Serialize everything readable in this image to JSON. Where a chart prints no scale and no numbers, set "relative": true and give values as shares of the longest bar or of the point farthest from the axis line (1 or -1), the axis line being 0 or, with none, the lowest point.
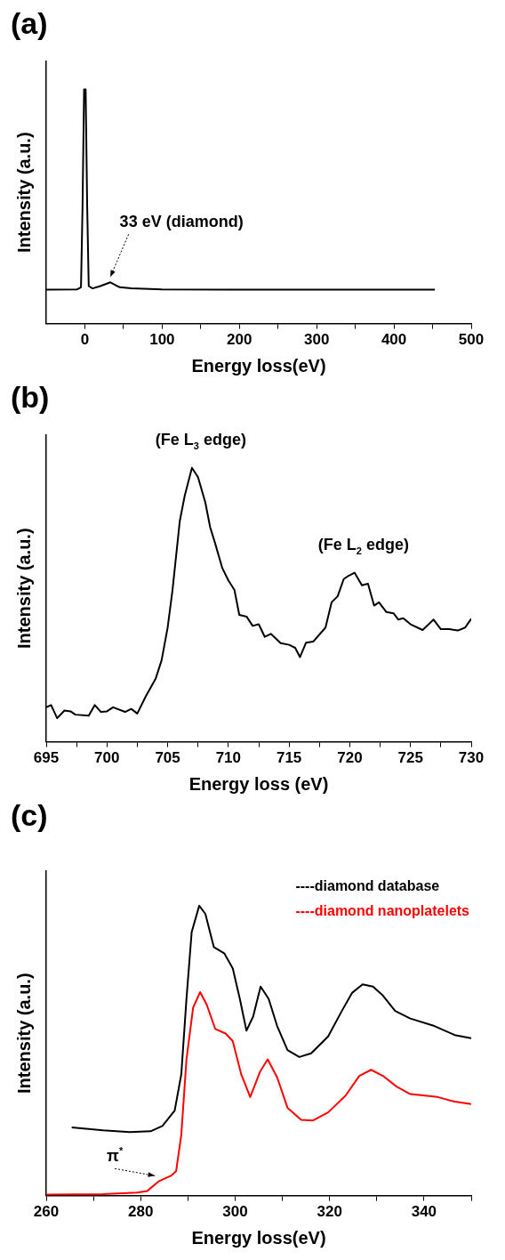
{
  "chart_data": [
    {
      "type": "line",
      "title": "(a)",
      "xlabel": "Energy loss(eV)",
      "ylabel": "Intensity (a.u.)",
      "relative": true,
      "color": "#000000",
      "x": [
        -50,
        -10,
        -5,
        -3,
        -1,
        1,
        3,
        5,
        10,
        20,
        33,
        45,
        60,
        100,
        200,
        300,
        453
      ],
      "values": [
        0.145,
        0.146,
        0.155,
        0.5,
        1,
        1,
        0.5,
        0.16,
        0.15,
        0.16,
        0.176,
        0.155,
        0.15,
        0.146,
        0.145,
        0.145,
        0.145
      ],
      "xlim": [
        -50,
        500
      ],
      "xticks": [
        0,
        {
          "value": 50,
          "label": null
        },
        100,
        {
          "value": 150,
          "label": null
        },
        200,
        {
          "value": 250,
          "label": null
        },
        300,
        {
          "value": 350,
          "label": null
        },
        400,
        {
          "value": 450,
          "label": null
        },
        500
      ],
      "annotations": [
        {
          "text": "33 eV (diamond)",
          "x": 33,
          "y": 0.176
        }
      ],
      "grid": false,
      "legend": false,
      "marker": "none",
      "line_style": "solid"
    },
    {
      "type": "line",
      "title": "(b)",
      "xlabel": "Energy loss (eV)",
      "ylabel": "Intensity (a.u.)",
      "relative": true,
      "color": "#000000",
      "x": [
        695,
        695.4,
        695.9,
        696.5,
        697,
        697.4,
        698.5,
        699,
        699.5,
        700,
        700.5,
        701.5,
        702,
        702.5,
        703.2,
        704,
        704.5,
        705,
        705.4,
        706,
        706.4,
        707,
        707.5,
        708.1,
        708.5,
        708.9,
        709.5,
        710,
        710.5,
        710.9,
        711.5,
        712,
        712.5,
        713,
        713.5,
        714.3,
        715,
        715.5,
        715.9,
        716.4,
        717,
        718,
        718.5,
        719,
        719.5,
        719.9,
        720.4,
        721,
        721.5,
        722,
        722.4,
        723,
        723.6,
        724,
        724.4,
        725,
        726,
        726.9,
        727.5,
        728.2,
        728.9,
        729.5,
        730
      ],
      "values": [
        0.126,
        0.134,
        0.086,
        0.114,
        0.111,
        0.099,
        0.095,
        0.134,
        0.109,
        0.111,
        0.126,
        0.109,
        0.12,
        0.103,
        0.166,
        0.229,
        0.297,
        0.417,
        0.554,
        0.806,
        0.897,
        1,
        0.966,
        0.874,
        0.783,
        0.726,
        0.634,
        0.589,
        0.554,
        0.463,
        0.457,
        0.423,
        0.429,
        0.383,
        0.394,
        0.36,
        0.354,
        0.343,
        0.309,
        0.362,
        0.366,
        0.417,
        0.509,
        0.531,
        0.594,
        0.606,
        0.617,
        0.571,
        0.577,
        0.497,
        0.509,
        0.474,
        0.469,
        0.446,
        0.451,
        0.429,
        0.408,
        0.446,
        0.411,
        0.411,
        0.406,
        0.417,
        0.449
      ],
      "xlim": [
        695,
        730
      ],
      "xticks": [
        695,
        {
          "value": 697.5,
          "label": null
        },
        700,
        {
          "value": 702.5,
          "label": null
        },
        705,
        {
          "value": 707.5,
          "label": null
        },
        710,
        {
          "value": 712.5,
          "label": null
        },
        715,
        {
          "value": 717.5,
          "label": null
        },
        720,
        {
          "value": 722.5,
          "label": null
        },
        725,
        {
          "value": 727.5,
          "label": null
        },
        730
      ],
      "annotations": [
        {
          "text": "(Fe L$_{3}$ edge)",
          "x": 707,
          "y": 1
        },
        {
          "text": "(Fe L$_{2}$ edge)",
          "x": 720.4,
          "y": 0.617
        }
      ],
      "grid": false,
      "legend": false,
      "marker": "none",
      "line_style": "solid"
    },
    {
      "type": "line",
      "title": "(c)",
      "xlabel": "Energy loss(eV)",
      "ylabel": "Intensity (a.u.)",
      "relative": true,
      "series": [
        {
          "name": "----diamond database",
          "color": "#000000",
          "x": [
            265.4,
            272,
            277.7,
            282.1,
            284.6,
            287.2,
            288.6,
            289.7,
            290.8,
            292.4,
            293.7,
            295.5,
            297.7,
            299.5,
            301,
            302.4,
            303.8,
            305.4,
            307.1,
            308.9,
            311.1,
            313.6,
            316.1,
            319.7,
            322.6,
            324.8,
            327,
            329.2,
            331.3,
            333.9,
            337.1,
            342.2,
            346.5,
            350
          ],
          "values": [
            0.235,
            0.225,
            0.219,
            0.222,
            0.24,
            0.293,
            0.418,
            0.679,
            0.909,
            1,
            0.972,
            0.857,
            0.836,
            0.784,
            0.679,
            0.569,
            0.617,
            0.721,
            0.679,
            0.585,
            0.502,
            0.478,
            0.491,
            0.549,
            0.637,
            0.7,
            0.729,
            0.721,
            0.69,
            0.637,
            0.611,
            0.585,
            0.554,
            0.543
          ]
        },
        {
          "name": "----diamond nanoplatelets",
          "color": "#ff0000",
          "x": [
            260,
            272,
            279.2,
            281.4,
            283.9,
            286.4,
            287.5,
            288.6,
            289.7,
            291.1,
            292.6,
            294,
            295.8,
            298,
            299.5,
            301.3,
            303.2,
            305.3,
            306.9,
            308.9,
            311.1,
            314,
            316.5,
            319.7,
            323.4,
            326.3,
            328.8,
            331.3,
            334.2,
            337.1,
            342.9,
            346.5,
            350
          ],
          "values": [
            0.003,
            0.005,
            0.01,
            0.016,
            0.05,
            0.068,
            0.084,
            0.209,
            0.47,
            0.648,
            0.702,
            0.658,
            0.575,
            0.559,
            0.533,
            0.418,
            0.34,
            0.428,
            0.47,
            0.408,
            0.303,
            0.261,
            0.259,
            0.287,
            0.345,
            0.413,
            0.434,
            0.413,
            0.376,
            0.35,
            0.34,
            0.324,
            0.316
          ]
        }
      ],
      "xlim": [
        260,
        350
      ],
      "xticks": [
        260,
        {
          "value": 270,
          "label": null
        },
        280,
        {
          "value": 290,
          "label": null
        },
        300,
        {
          "value": 310,
          "label": null
        },
        320,
        {
          "value": 330,
          "label": null
        },
        340,
        {
          "value": 350,
          "label": null
        }
      ],
      "annotations": [
        {
          "text": "π$^{*}$",
          "x": 283,
          "y": 0.05
        }
      ],
      "grid": false,
      "legend": "top right",
      "marker": "none",
      "line_style": "solid"
    }
  ]
}
